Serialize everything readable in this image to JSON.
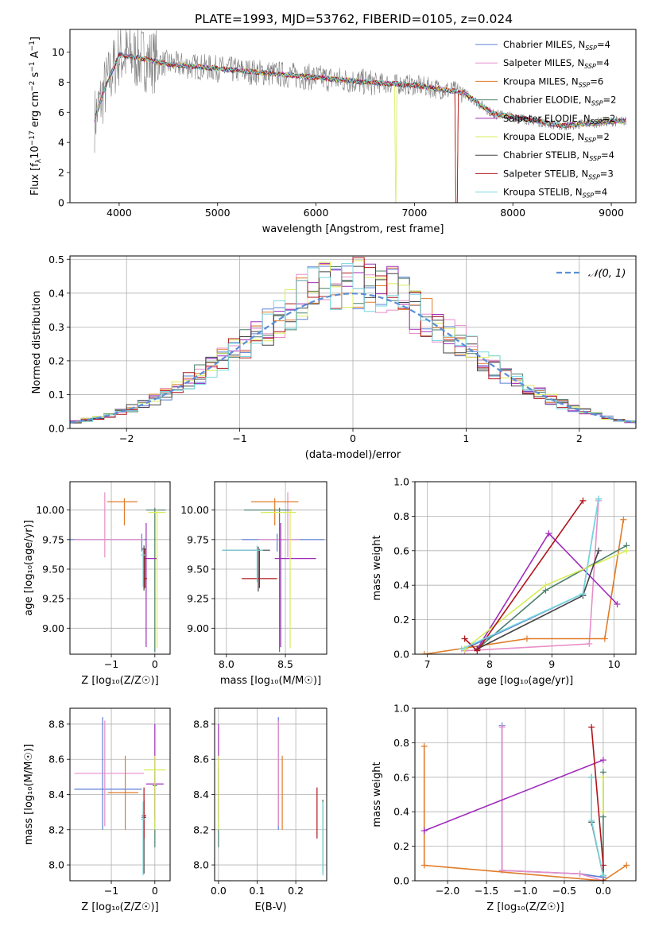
{
  "figure": {
    "title": "PLATE=1993, MJD=53762, FIBERID=0105, z=0.024"
  },
  "chart_data": [
    {
      "type": "line",
      "panel": "spectrum",
      "xlabel": "wavelength [Angstrom, rest frame]",
      "ylabel_parts": [
        "Flux [f",
        "λ",
        "10",
        "−17",
        " erg cm",
        "−2",
        " s",
        "−1",
        " A",
        "−1",
        "]"
      ],
      "xlim": [
        3500,
        9250
      ],
      "ylim": [
        0,
        11.5
      ],
      "xticks": [
        4000,
        5000,
        6000,
        7000,
        8000,
        9000
      ],
      "yticks": [
        0,
        2,
        4,
        6,
        8,
        10
      ],
      "grid": false,
      "legend_position": "top-right",
      "data_range": [
        3750,
        9150
      ],
      "continuum": {
        "x": [
          3750,
          3850,
          4000,
          4200,
          4500,
          5000,
          5500,
          6000,
          6500,
          7000,
          7500,
          7800,
          8000,
          8500,
          9000,
          9150
        ],
        "y": [
          5.5,
          7.5,
          9.8,
          9.6,
          9.2,
          8.9,
          8.6,
          8.3,
          8.0,
          7.8,
          7.3,
          5.9,
          5.7,
          5.1,
          5.4,
          5.4
        ]
      },
      "series": [
        {
          "name": "Chabrier MILES",
          "n_ssp": "4"
        },
        {
          "name": "Salpeter MILES",
          "n_ssp": "4"
        },
        {
          "name": "Kroupa MILES",
          "n_ssp": "6"
        },
        {
          "name": "Chabrier ELODIE",
          "n_ssp": "2"
        },
        {
          "name": "Salpeter ELODIE",
          "n_ssp": "2"
        },
        {
          "name": "Kroupa ELODIE",
          "n_ssp": "2"
        },
        {
          "name": "Chabrier STELIB",
          "n_ssp": "4"
        },
        {
          "name": "Salpeter STELIB",
          "n_ssp": "3"
        },
        {
          "name": "Kroupa STELIB",
          "n_ssp": "4"
        }
      ]
    },
    {
      "type": "line",
      "panel": "residuals",
      "xlabel": "(data-model)/error",
      "ylabel": "Normed distribution",
      "legend_label": "𝒩(0, 1)",
      "legend_position": "top-right",
      "xlim": [
        -2.5,
        2.5
      ],
      "ylim": [
        0,
        0.51
      ],
      "xticks": [
        -2,
        -1,
        0,
        1,
        2
      ],
      "yticks": [
        0.0,
        0.1,
        0.2,
        0.3,
        0.4,
        0.5
      ],
      "grid": true,
      "hist_bin_width": 0.1
    },
    {
      "type": "scatter",
      "panel": "Z vs age",
      "xlabel": "Z [log₁₀(Z/Z☉)]",
      "ylabel": "age  [log₁₀(age/yr)]",
      "xlim": [
        -1.95,
        0.35
      ],
      "ylim": [
        8.78,
        10.24
      ],
      "xticks": [
        -1,
        0
      ],
      "yticks": [
        9.0,
        9.25,
        9.5,
        9.75,
        10.0
      ],
      "grid": true,
      "points": [
        {
          "series": 0,
          "x": -0.3,
          "y": 9.75,
          "xerr": [
            1.65,
            0.1
          ],
          "yerr": [
            0.1,
            0.05
          ]
        },
        {
          "series": 1,
          "x": -1.15,
          "y": 9.75,
          "xerr": [
            0.7,
            0.9
          ],
          "yerr": [
            0.15,
            0.4
          ]
        },
        {
          "series": 2,
          "x": -0.7,
          "y": 10.07,
          "xerr": [
            0.4,
            0.3
          ],
          "yerr": [
            0.2,
            0.03
          ]
        },
        {
          "series": 3,
          "x": 0.0,
          "y": 10.0,
          "xerr": [
            0.2,
            0.25
          ],
          "yerr": [
            1.2,
            0.02
          ]
        },
        {
          "series": 4,
          "x": -0.2,
          "y": 9.59,
          "xerr": [
            0.05,
            0.25
          ],
          "yerr": [
            0.75,
            0.3
          ]
        },
        {
          "series": 5,
          "x": 0.05,
          "y": 9.98,
          "xerr": [
            0.2,
            0.2
          ],
          "yerr": [
            1.15,
            0.03
          ]
        },
        {
          "series": 6,
          "x": -0.25,
          "y": 9.67,
          "xerr": [
            0.05,
            0.05
          ],
          "yerr": [
            0.35,
            0.03
          ]
        },
        {
          "series": 7,
          "x": -0.23,
          "y": 9.42,
          "xerr": [
            0.05,
            0.05
          ],
          "yerr": [
            0.08,
            0.25
          ]
        },
        {
          "series": 8,
          "x": -0.27,
          "y": 9.62,
          "xerr": [
            0.05,
            0.05
          ],
          "yerr": [
            0.27,
            0.04
          ]
        }
      ]
    },
    {
      "type": "scatter",
      "panel": "mass vs age",
      "xlabel": "mass [log₁₀(M/M☉)]",
      "ylabel": "",
      "xlim": [
        7.9,
        8.85
      ],
      "ylim": [
        8.78,
        10.24
      ],
      "xticks": [
        8.0,
        8.5
      ],
      "yticks": [
        9.0,
        9.25,
        9.5,
        9.75,
        10.0
      ],
      "grid": true,
      "points": [
        {
          "series": 0,
          "x": 8.43,
          "y": 9.75,
          "xerr": [
            0.3,
            0.4
          ],
          "yerr": [
            0.1,
            0.05
          ]
        },
        {
          "series": 1,
          "x": 8.52,
          "y": 9.75,
          "xerr": [
            0.25,
            0.1
          ],
          "yerr": [
            0.15,
            0.4
          ]
        },
        {
          "series": 2,
          "x": 8.41,
          "y": 10.07,
          "xerr": [
            0.2,
            0.2
          ],
          "yerr": [
            0.2,
            0.03
          ]
        },
        {
          "series": 3,
          "x": 8.45,
          "y": 10.0,
          "xerr": [
            0.3,
            0.1
          ],
          "yerr": [
            1.2,
            0.02
          ]
        },
        {
          "series": 4,
          "x": 8.46,
          "y": 9.59,
          "xerr": [
            0.05,
            0.3
          ],
          "yerr": [
            0.75,
            0.3
          ]
        },
        {
          "series": 5,
          "x": 8.54,
          "y": 9.98,
          "xerr": [
            0.25,
            0.05
          ],
          "yerr": [
            1.15,
            0.03
          ]
        },
        {
          "series": 6,
          "x": 8.27,
          "y": 9.66,
          "xerr": [
            0.3,
            0.1
          ],
          "yerr": [
            0.35,
            0.03
          ]
        },
        {
          "series": 7,
          "x": 8.28,
          "y": 9.42,
          "xerr": [
            0.15,
            0.15
          ],
          "yerr": [
            0.08,
            0.25
          ]
        },
        {
          "series": 8,
          "x": 8.26,
          "y": 9.66,
          "xerr": [
            0.3,
            0.05
          ],
          "yerr": [
            0.27,
            0.04
          ]
        }
      ]
    },
    {
      "type": "line",
      "panel": "age vs mass weight",
      "xlabel": "age  [log₁₀(age/yr)]",
      "ylabel": "mass weight",
      "xlim": [
        6.8,
        10.35
      ],
      "ylim": [
        0,
        1.0
      ],
      "xticks": [
        7,
        8,
        9,
        10
      ],
      "yticks": [
        0.0,
        0.2,
        0.4,
        0.6,
        0.8,
        1.0
      ],
      "grid": true,
      "lines": [
        {
          "series": 0,
          "x": [
            7.6,
            9.5,
            9.75
          ],
          "y": [
            0.03,
            0.35,
            0.9
          ]
        },
        {
          "series": 1,
          "x": [
            7.6,
            9.6,
            9.75
          ],
          "y": [
            0.02,
            0.06,
            0.89
          ]
        },
        {
          "series": 2,
          "x": [
            6.95,
            8.6,
            9.85,
            10.15
          ],
          "y": [
            0.0,
            0.09,
            0.09,
            0.78
          ]
        },
        {
          "series": 3,
          "x": [
            7.8,
            8.9,
            10.2
          ],
          "y": [
            0.03,
            0.37,
            0.63
          ]
        },
        {
          "series": 4,
          "x": [
            7.8,
            8.95,
            10.05
          ],
          "y": [
            0.03,
            0.7,
            0.29
          ]
        },
        {
          "series": 5,
          "x": [
            7.6,
            8.9,
            10.2
          ],
          "y": [
            0.03,
            0.4,
            0.6
          ]
        },
        {
          "series": 6,
          "x": [
            7.8,
            9.5,
            9.75
          ],
          "y": [
            0.03,
            0.34,
            0.6
          ]
        },
        {
          "series": 7,
          "x": [
            7.6,
            7.8,
            9.5
          ],
          "y": [
            0.09,
            0.02,
            0.89
          ]
        },
        {
          "series": 8,
          "x": [
            7.55,
            9.5,
            9.75
          ],
          "y": [
            0.03,
            0.35,
            0.9
          ]
        }
      ]
    },
    {
      "type": "scatter",
      "panel": "Z vs mass",
      "xlabel": "Z [log₁₀(Z/Z☉)]",
      "ylabel": "mass [log₁₀(M/M☉)]",
      "xlim": [
        -1.95,
        0.35
      ],
      "ylim": [
        7.91,
        8.89
      ],
      "xticks": [
        -1,
        0
      ],
      "yticks": [
        8.0,
        8.2,
        8.4,
        8.6,
        8.8
      ],
      "grid": true,
      "points": [
        {
          "series": 0,
          "x": -1.2,
          "y": 8.43,
          "xerr": [
            0.65,
            0.9
          ],
          "yerr": [
            0.23,
            0.41
          ]
        },
        {
          "series": 1,
          "x": -1.15,
          "y": 8.52,
          "xerr": [
            0.7,
            0.9
          ],
          "yerr": [
            0.3,
            0.3
          ]
        },
        {
          "series": 2,
          "x": -0.68,
          "y": 8.41,
          "xerr": [
            0.4,
            0.3
          ],
          "yerr": [
            0.21,
            0.21
          ]
        },
        {
          "series": 3,
          "x": 0.0,
          "y": 8.45,
          "xerr": [
            0.05,
            0.05
          ],
          "yerr": [
            0.35,
            0.1
          ]
        },
        {
          "series": 4,
          "x": 0.0,
          "y": 8.46,
          "xerr": [
            0.2,
            0.2
          ],
          "yerr": [
            0.2,
            0.34
          ]
        },
        {
          "series": 5,
          "x": 0.0,
          "y": 8.54,
          "xerr": [
            0.25,
            0.25
          ],
          "yerr": [
            0.34,
            0.08
          ]
        },
        {
          "series": 6,
          "x": -0.25,
          "y": 8.27,
          "xerr": [
            0.05,
            0.05
          ],
          "yerr": [
            0.32,
            0.1
          ]
        },
        {
          "series": 7,
          "x": -0.25,
          "y": 8.28,
          "xerr": [
            0.05,
            0.05
          ],
          "yerr": [
            0.13,
            0.16
          ]
        },
        {
          "series": 8,
          "x": -0.27,
          "y": 8.26,
          "xerr": [
            0.05,
            0.05
          ],
          "yerr": [
            0.32,
            0.1
          ]
        }
      ]
    },
    {
      "type": "scatter",
      "panel": "E(B-V) vs mass",
      "xlabel": "E(B-V)",
      "ylabel": "",
      "xlim": [
        -0.01,
        0.28
      ],
      "ylim": [
        7.91,
        8.89
      ],
      "xticks": [
        0.0,
        0.1,
        0.2
      ],
      "yticks": [
        8.0,
        8.2,
        8.4,
        8.6,
        8.8
      ],
      "grid": true,
      "points": [
        {
          "series": 0,
          "x": 0.155,
          "y": 8.43,
          "yerr": [
            0.23,
            0.41
          ]
        },
        {
          "series": 1,
          "x": 0.155,
          "y": 8.52,
          "yerr": [
            0.3,
            0.3
          ]
        },
        {
          "series": 2,
          "x": 0.165,
          "y": 8.41,
          "yerr": [
            0.21,
            0.21
          ]
        },
        {
          "series": 3,
          "x": 0.0,
          "y": 8.45,
          "yerr": [
            0.35,
            0.1
          ]
        },
        {
          "series": 4,
          "x": 0.0,
          "y": 8.46,
          "yerr": [
            0.2,
            0.34
          ]
        },
        {
          "series": 5,
          "x": 0.0,
          "y": 8.54,
          "yerr": [
            0.34,
            0.08
          ]
        },
        {
          "series": 6,
          "x": 0.27,
          "y": 8.27,
          "yerr": [
            0.32,
            0.1
          ]
        },
        {
          "series": 7,
          "x": 0.255,
          "y": 8.28,
          "yerr": [
            0.13,
            0.16
          ]
        },
        {
          "series": 8,
          "x": 0.27,
          "y": 8.26,
          "yerr": [
            0.32,
            0.1
          ]
        }
      ]
    },
    {
      "type": "line",
      "panel": "Z vs mass weight",
      "xlabel": "Z [log₁₀(Z/Z☉)]",
      "ylabel": "mass weight",
      "xlim": [
        -2.42,
        0.42
      ],
      "ylim": [
        0,
        1.0
      ],
      "xticks": [
        -2.0,
        -1.5,
        -1.0,
        -0.5,
        0.0
      ],
      "yticks": [
        0.0,
        0.2,
        0.4,
        0.6,
        0.8,
        1.0
      ],
      "grid": true,
      "lines": [
        {
          "series": 0,
          "x": [
            -1.3,
            -1.3,
            -0.3,
            0.0
          ],
          "y": [
            0.9,
            0.06,
            0.04,
            0.02
          ]
        },
        {
          "series": 1,
          "x": [
            -1.3,
            -1.3,
            -0.3,
            0.0
          ],
          "y": [
            0.89,
            0.06,
            0.04,
            0.0
          ]
        },
        {
          "series": 2,
          "x": [
            -2.3,
            -2.3,
            0.0,
            0.3
          ],
          "y": [
            0.78,
            0.09,
            0.0,
            0.09
          ]
        },
        {
          "series": 3,
          "x": [
            0.0,
            0.0,
            0.0
          ],
          "y": [
            0.37,
            0.63,
            0.03
          ]
        },
        {
          "series": 4,
          "x": [
            -2.3,
            0.0
          ],
          "y": [
            0.29,
            0.7
          ]
        },
        {
          "series": 5,
          "x": [
            0.0,
            0.0
          ],
          "y": [
            0.4,
            0.6
          ]
        },
        {
          "series": 6,
          "x": [
            -0.15,
            -0.15,
            0.0
          ],
          "y": [
            0.6,
            0.34,
            0.03
          ]
        },
        {
          "series": 7,
          "x": [
            -0.15,
            0.0,
            0.0
          ],
          "y": [
            0.89,
            0.09,
            0.0
          ]
        },
        {
          "series": 8,
          "x": [
            -0.15,
            -0.15,
            0.0
          ],
          "y": [
            0.6,
            0.35,
            0.03
          ]
        }
      ]
    }
  ],
  "colors": {
    "series": [
      "#5b7fd6",
      "#e88dc8",
      "#e07b28",
      "#4b7f6a",
      "#a02dbb",
      "#d8ec58",
      "#444444",
      "#b0141b",
      "#78d8df"
    ],
    "data": "#7f7f7f",
    "normal_curve": "#5b8fd6"
  }
}
